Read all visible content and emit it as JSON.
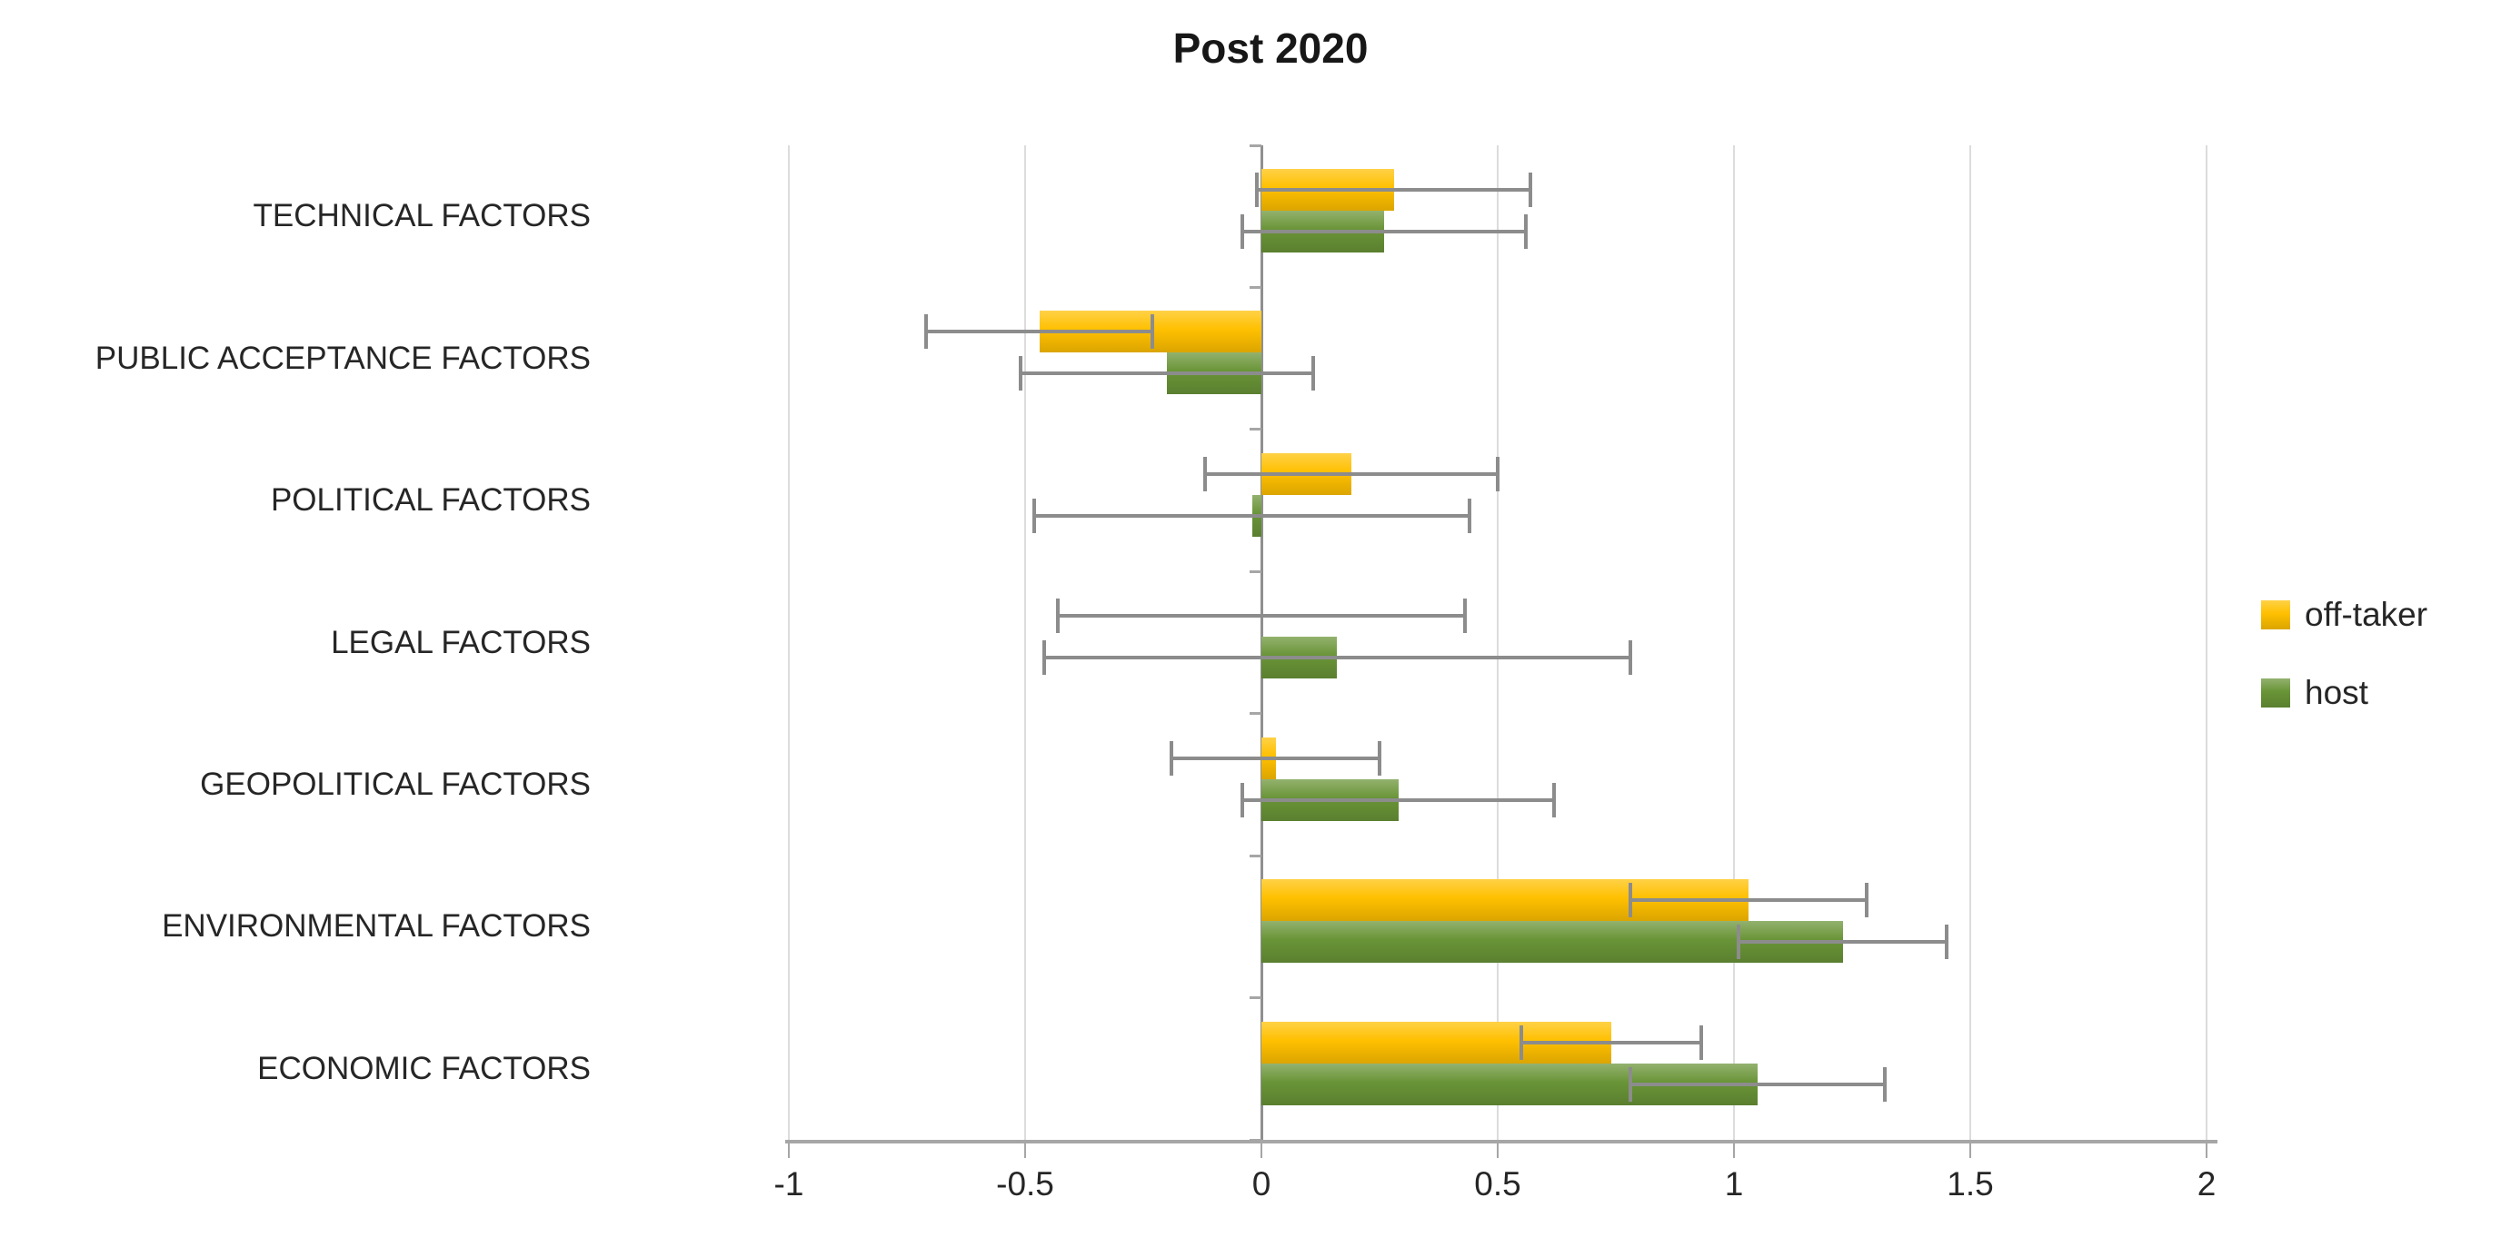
{
  "chart_data": {
    "type": "bar",
    "orientation": "horizontal",
    "title": "Post 2020",
    "categories": [
      "TECHNICAL FACTORS",
      "PUBLIC ACCEPTANCE FACTORS",
      "POLITICAL FACTORS",
      "LEGAL FACTORS",
      "GEOPOLITICAL FACTORS",
      "ENVIRONMENTAL FACTORS",
      "ECONOMIC FACTORS"
    ],
    "series": [
      {
        "name": "off-taker",
        "color": "#FFC000",
        "values": [
          0.28,
          -0.47,
          0.19,
          0.0,
          0.03,
          1.03,
          0.74
        ],
        "errors": [
          0.29,
          0.24,
          0.31,
          0.43,
          0.22,
          0.25,
          0.19
        ]
      },
      {
        "name": "host",
        "color": "#699437",
        "values": [
          0.26,
          -0.2,
          -0.02,
          0.16,
          0.29,
          1.23,
          1.05
        ],
        "errors": [
          0.3,
          0.31,
          0.46,
          0.62,
          0.33,
          0.22,
          0.27
        ]
      }
    ],
    "xlim": [
      -1,
      2
    ],
    "xticks": [
      -1,
      -0.5,
      0,
      0.5,
      1,
      1.5,
      2
    ],
    "xtick_labels": [
      "-1",
      "-0.5",
      "0",
      "0.5",
      "1",
      "1.5",
      "2"
    ],
    "grid": "vertical-on",
    "legend_position": "right",
    "error_bars": true,
    "gridline_color": "#DCDCDC",
    "axis_color": "#A6A6A6",
    "zero_line_color": "#8F8F8F",
    "error_bar_color": "#8C8C8C"
  }
}
